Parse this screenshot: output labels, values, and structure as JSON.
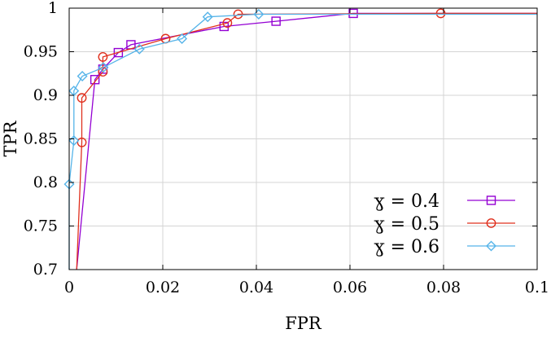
{
  "chart_data": {
    "type": "line",
    "xlabel": "FPR",
    "ylabel": "TPR",
    "xlim": [
      0,
      0.1
    ],
    "ylim": [
      0.7,
      1.0
    ],
    "x_ticks": [
      "0",
      "0.02",
      "0.04",
      "0.06",
      "0.08",
      "0.1"
    ],
    "y_ticks": [
      "0.7",
      "0.75",
      "0.8",
      "0.85",
      "0.9",
      "0.95",
      "1"
    ],
    "grid": true,
    "legend_position": "bottom-right",
    "series": [
      {
        "name": "ɣ = 0.4",
        "color": "#9400d3",
        "marker": "square",
        "x": [
          0.0016,
          0.0055,
          0.0072,
          0.0105,
          0.0132,
          0.0331,
          0.0442,
          0.0607,
          0.1
        ],
        "y": [
          0.7,
          0.918,
          0.93,
          0.949,
          0.958,
          0.979,
          0.985,
          0.994,
          0.994
        ],
        "markers": [
          false,
          true,
          true,
          true,
          true,
          true,
          true,
          true,
          false
        ]
      },
      {
        "name": "ɣ = 0.5",
        "color": "#e0301e",
        "marker": "circle",
        "x": [
          0.0016,
          0.0027,
          0.0027,
          0.0072,
          0.0072,
          0.0206,
          0.0338,
          0.0361,
          0.0794,
          0.1
        ],
        "y": [
          0.7,
          0.846,
          0.897,
          0.927,
          0.944,
          0.965,
          0.983,
          0.993,
          0.994,
          0.994
        ],
        "markers": [
          false,
          true,
          true,
          true,
          true,
          true,
          true,
          true,
          true,
          false
        ]
      },
      {
        "name": "ɣ = 0.6",
        "color": "#56b4e9",
        "marker": "diamond",
        "x": [
          0.0,
          0.0,
          0.001,
          0.001,
          0.0028,
          0.0073,
          0.015,
          0.0241,
          0.0296,
          0.0405,
          0.1
        ],
        "y": [
          0.7,
          0.798,
          0.848,
          0.905,
          0.922,
          0.932,
          0.953,
          0.965,
          0.99,
          0.993,
          0.993
        ],
        "markers": [
          false,
          true,
          true,
          true,
          true,
          true,
          true,
          true,
          true,
          true,
          false
        ]
      }
    ]
  }
}
